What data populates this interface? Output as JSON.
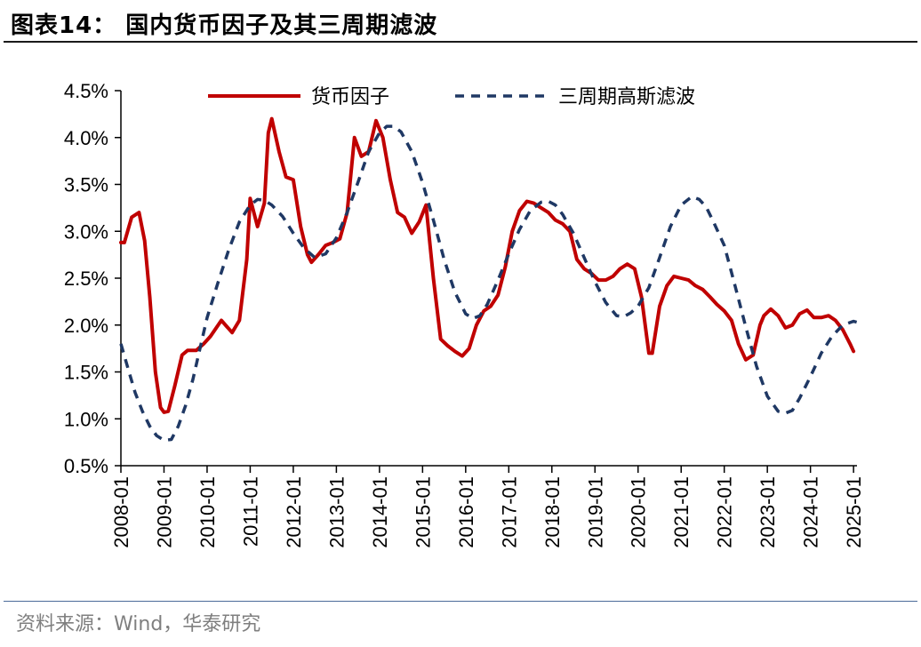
{
  "header": {
    "title": "图表14：  国内货币因子及其三周期滤波"
  },
  "footer": {
    "source": "资料来源：Wind，华泰研究"
  },
  "colors": {
    "money_factor": "#c00000",
    "filter": "#1f3864",
    "axis": "#000000"
  },
  "chart_data": {
    "type": "line",
    "title": "",
    "xlabel": "",
    "ylabel": "",
    "ylim": [
      0.5,
      4.5
    ],
    "yticks": [
      "0.5%",
      "1.0%",
      "1.5%",
      "2.0%",
      "2.5%",
      "3.0%",
      "3.5%",
      "4.0%",
      "4.5%"
    ],
    "xlim": [
      2008.0,
      2025.08
    ],
    "xticks": [
      "2008-01",
      "2009-01",
      "2010-01",
      "2011-01",
      "2012-01",
      "2013-01",
      "2014-01",
      "2015-01",
      "2016-01",
      "2017-01",
      "2018-01",
      "2019-01",
      "2020-01",
      "2021-01",
      "2022-01",
      "2023-01",
      "2024-01",
      "2025-01"
    ],
    "legend_position": "top",
    "grid": false,
    "series": [
      {
        "name": "货币因子",
        "style": "solid",
        "color": "#c00000",
        "points": [
          [
            2008.0,
            2.88
          ],
          [
            2008.08,
            2.88
          ],
          [
            2008.25,
            3.15
          ],
          [
            2008.42,
            3.2
          ],
          [
            2008.55,
            2.9
          ],
          [
            2008.67,
            2.3
          ],
          [
            2008.8,
            1.5
          ],
          [
            2008.92,
            1.12
          ],
          [
            2009.0,
            1.07
          ],
          [
            2009.1,
            1.08
          ],
          [
            2009.25,
            1.35
          ],
          [
            2009.42,
            1.68
          ],
          [
            2009.55,
            1.73
          ],
          [
            2009.75,
            1.73
          ],
          [
            2009.92,
            1.8
          ],
          [
            2010.08,
            1.88
          ],
          [
            2010.33,
            2.05
          ],
          [
            2010.58,
            1.92
          ],
          [
            2010.75,
            2.05
          ],
          [
            2010.92,
            2.7
          ],
          [
            2011.0,
            3.35
          ],
          [
            2011.17,
            3.05
          ],
          [
            2011.33,
            3.3
          ],
          [
            2011.42,
            4.05
          ],
          [
            2011.5,
            4.2
          ],
          [
            2011.67,
            3.85
          ],
          [
            2011.83,
            3.58
          ],
          [
            2012.0,
            3.55
          ],
          [
            2012.17,
            3.05
          ],
          [
            2012.33,
            2.75
          ],
          [
            2012.42,
            2.67
          ],
          [
            2012.58,
            2.75
          ],
          [
            2012.75,
            2.85
          ],
          [
            2012.92,
            2.88
          ],
          [
            2013.08,
            2.92
          ],
          [
            2013.25,
            3.2
          ],
          [
            2013.42,
            4.0
          ],
          [
            2013.58,
            3.8
          ],
          [
            2013.75,
            3.85
          ],
          [
            2013.92,
            4.18
          ],
          [
            2014.08,
            4.0
          ],
          [
            2014.25,
            3.55
          ],
          [
            2014.42,
            3.2
          ],
          [
            2014.58,
            3.15
          ],
          [
            2014.75,
            2.98
          ],
          [
            2014.92,
            3.1
          ],
          [
            2015.08,
            3.28
          ],
          [
            2015.25,
            2.5
          ],
          [
            2015.42,
            1.85
          ],
          [
            2015.58,
            1.78
          ],
          [
            2015.75,
            1.72
          ],
          [
            2015.92,
            1.67
          ],
          [
            2016.08,
            1.75
          ],
          [
            2016.25,
            2.0
          ],
          [
            2016.42,
            2.15
          ],
          [
            2016.58,
            2.2
          ],
          [
            2016.75,
            2.32
          ],
          [
            2016.92,
            2.62
          ],
          [
            2017.08,
            3.0
          ],
          [
            2017.25,
            3.22
          ],
          [
            2017.42,
            3.32
          ],
          [
            2017.58,
            3.3
          ],
          [
            2017.75,
            3.25
          ],
          [
            2017.92,
            3.2
          ],
          [
            2018.08,
            3.12
          ],
          [
            2018.25,
            3.08
          ],
          [
            2018.42,
            3.0
          ],
          [
            2018.58,
            2.7
          ],
          [
            2018.75,
            2.6
          ],
          [
            2018.92,
            2.55
          ],
          [
            2019.08,
            2.48
          ],
          [
            2019.25,
            2.48
          ],
          [
            2019.42,
            2.52
          ],
          [
            2019.58,
            2.6
          ],
          [
            2019.75,
            2.65
          ],
          [
            2019.92,
            2.6
          ],
          [
            2020.08,
            2.3
          ],
          [
            2020.25,
            1.7
          ],
          [
            2020.33,
            1.7
          ],
          [
            2020.5,
            2.2
          ],
          [
            2020.67,
            2.42
          ],
          [
            2020.83,
            2.52
          ],
          [
            2021.0,
            2.5
          ],
          [
            2021.17,
            2.48
          ],
          [
            2021.33,
            2.42
          ],
          [
            2021.5,
            2.38
          ],
          [
            2021.67,
            2.3
          ],
          [
            2021.83,
            2.22
          ],
          [
            2022.0,
            2.15
          ],
          [
            2022.17,
            2.05
          ],
          [
            2022.33,
            1.8
          ],
          [
            2022.5,
            1.63
          ],
          [
            2022.67,
            1.68
          ],
          [
            2022.83,
            2.0
          ],
          [
            2022.92,
            2.1
          ],
          [
            2023.08,
            2.17
          ],
          [
            2023.25,
            2.1
          ],
          [
            2023.42,
            1.97
          ],
          [
            2023.58,
            2.0
          ],
          [
            2023.75,
            2.12
          ],
          [
            2023.92,
            2.16
          ],
          [
            2024.08,
            2.08
          ],
          [
            2024.25,
            2.08
          ],
          [
            2024.42,
            2.1
          ],
          [
            2024.58,
            2.05
          ],
          [
            2024.75,
            1.95
          ],
          [
            2024.92,
            1.8
          ],
          [
            2025.0,
            1.72
          ]
        ]
      },
      {
        "name": "三周期高斯滤波",
        "style": "dashed",
        "color": "#1f3864",
        "points": [
          [
            2008.0,
            1.8
          ],
          [
            2008.17,
            1.53
          ],
          [
            2008.33,
            1.28
          ],
          [
            2008.5,
            1.08
          ],
          [
            2008.67,
            0.92
          ],
          [
            2008.83,
            0.82
          ],
          [
            2009.0,
            0.77
          ],
          [
            2009.17,
            0.78
          ],
          [
            2009.33,
            0.92
          ],
          [
            2009.5,
            1.14
          ],
          [
            2009.67,
            1.42
          ],
          [
            2009.83,
            1.74
          ],
          [
            2010.0,
            2.08
          ],
          [
            2010.25,
            2.45
          ],
          [
            2010.5,
            2.8
          ],
          [
            2010.75,
            3.1
          ],
          [
            2011.0,
            3.28
          ],
          [
            2011.17,
            3.34
          ],
          [
            2011.33,
            3.33
          ],
          [
            2011.5,
            3.28
          ],
          [
            2011.75,
            3.16
          ],
          [
            2012.0,
            2.98
          ],
          [
            2012.25,
            2.82
          ],
          [
            2012.5,
            2.72
          ],
          [
            2012.75,
            2.76
          ],
          [
            2013.0,
            2.93
          ],
          [
            2013.25,
            3.2
          ],
          [
            2013.5,
            3.52
          ],
          [
            2013.75,
            3.85
          ],
          [
            2014.0,
            4.05
          ],
          [
            2014.17,
            4.12
          ],
          [
            2014.33,
            4.12
          ],
          [
            2014.5,
            4.06
          ],
          [
            2014.75,
            3.85
          ],
          [
            2015.0,
            3.52
          ],
          [
            2015.25,
            3.12
          ],
          [
            2015.5,
            2.7
          ],
          [
            2015.75,
            2.35
          ],
          [
            2016.0,
            2.12
          ],
          [
            2016.17,
            2.07
          ],
          [
            2016.33,
            2.1
          ],
          [
            2016.5,
            2.22
          ],
          [
            2016.75,
            2.48
          ],
          [
            2017.0,
            2.76
          ],
          [
            2017.25,
            3.02
          ],
          [
            2017.5,
            3.22
          ],
          [
            2017.75,
            3.31
          ],
          [
            2017.92,
            3.32
          ],
          [
            2018.08,
            3.28
          ],
          [
            2018.25,
            3.18
          ],
          [
            2018.5,
            2.98
          ],
          [
            2018.75,
            2.72
          ],
          [
            2019.0,
            2.46
          ],
          [
            2019.25,
            2.24
          ],
          [
            2019.5,
            2.1
          ],
          [
            2019.67,
            2.09
          ],
          [
            2019.83,
            2.13
          ],
          [
            2020.0,
            2.2
          ],
          [
            2020.25,
            2.4
          ],
          [
            2020.5,
            2.72
          ],
          [
            2020.75,
            3.05
          ],
          [
            2021.0,
            3.28
          ],
          [
            2021.25,
            3.37
          ],
          [
            2021.42,
            3.34
          ],
          [
            2021.58,
            3.26
          ],
          [
            2021.75,
            3.1
          ],
          [
            2022.0,
            2.85
          ],
          [
            2022.25,
            2.42
          ],
          [
            2022.5,
            1.98
          ],
          [
            2022.75,
            1.56
          ],
          [
            2023.0,
            1.24
          ],
          [
            2023.25,
            1.08
          ],
          [
            2023.42,
            1.06
          ],
          [
            2023.58,
            1.09
          ],
          [
            2023.75,
            1.22
          ],
          [
            2024.0,
            1.45
          ],
          [
            2024.25,
            1.7
          ],
          [
            2024.5,
            1.88
          ],
          [
            2024.75,
            2.0
          ],
          [
            2025.0,
            2.04
          ],
          [
            2025.08,
            2.03
          ]
        ]
      }
    ]
  }
}
